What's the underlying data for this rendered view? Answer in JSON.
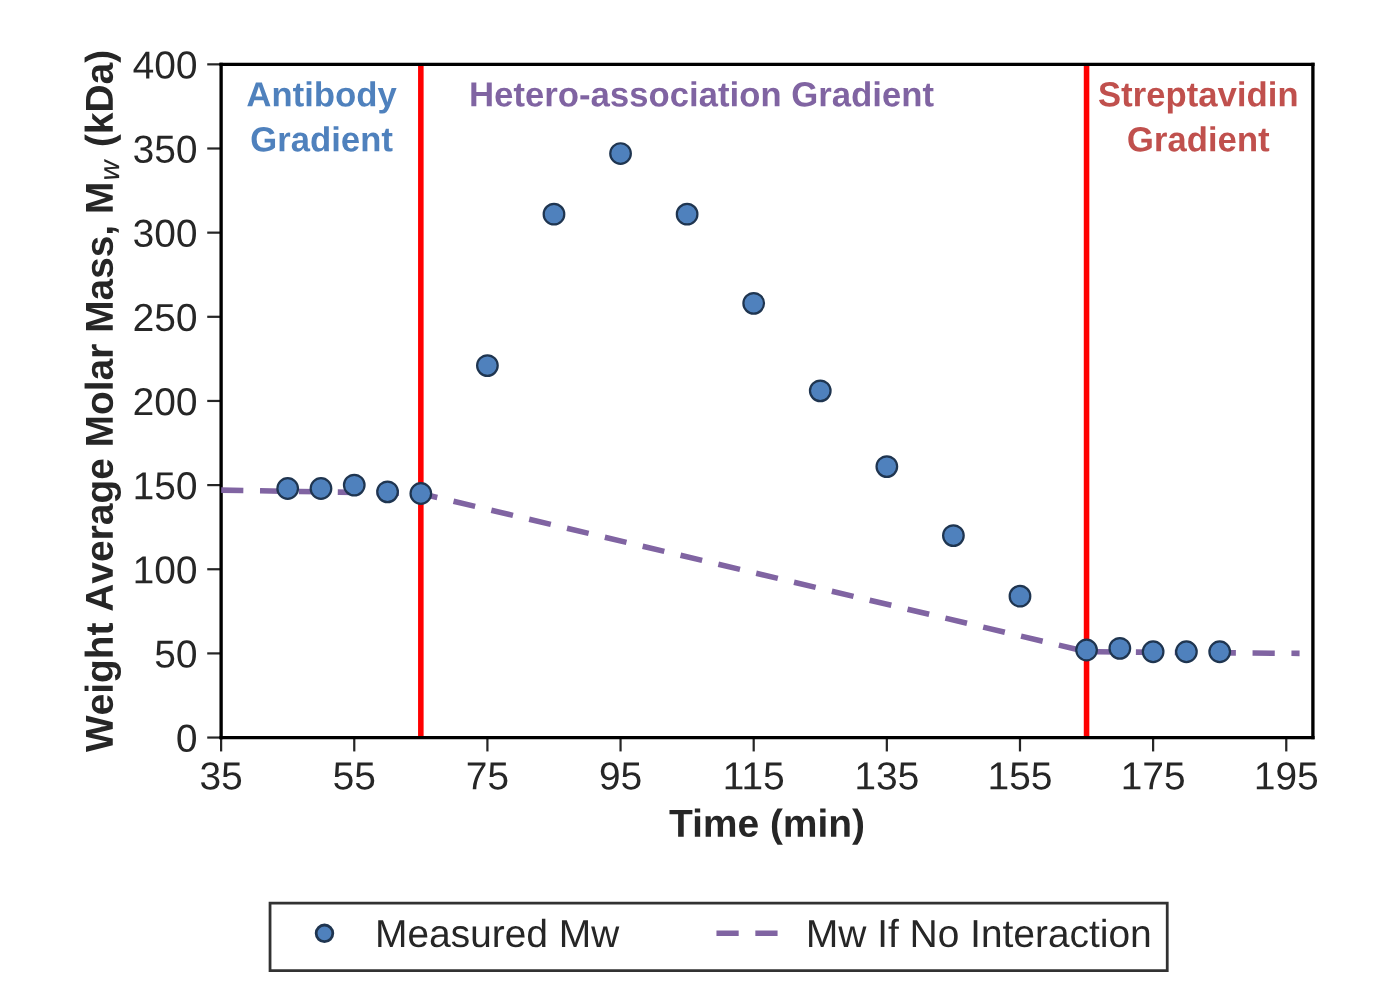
{
  "chart_data": {
    "type": "scatter",
    "xlabel": "Time (min)",
    "ylabel": "Weight Average Molar Mass, M$_{w}$ (kDa)",
    "series": [
      {
        "name": "Measured Mw",
        "marker": "circle",
        "color": "#4f81bd",
        "x": [
          45,
          50,
          55,
          60,
          65,
          75,
          85,
          95,
          105,
          115,
          125,
          135,
          145,
          155,
          165,
          170,
          175,
          180,
          185
        ],
        "values": [
          148,
          148,
          150,
          146,
          145,
          221,
          311,
          347,
          311,
          258,
          206,
          161,
          120,
          84,
          52,
          53,
          51,
          51,
          51
        ]
      },
      {
        "name": "Mw If No Interaction",
        "type": "line",
        "color": "#8064a2",
        "line_style": "dashed",
        "x": [
          35,
          65,
          165,
          197
        ],
        "values": [
          147,
          145,
          51,
          50
        ]
      }
    ],
    "xlim": [
      35,
      199
    ],
    "xticks": [
      35,
      55,
      75,
      95,
      115,
      135,
      155,
      175,
      195
    ],
    "ylim": [
      0,
      400
    ],
    "yticks": [
      0,
      50,
      100,
      150,
      200,
      250,
      300,
      350,
      400
    ],
    "ref_lines": [
      {
        "axis": "x",
        "value": 65,
        "color": "#ff0000"
      },
      {
        "axis": "x",
        "value": 165,
        "color": "#ff0000"
      }
    ],
    "annotations": [
      "Antibody\nGradient",
      "Hetero-association Gradient",
      "Streptavidin\nGradient"
    ],
    "grid": false,
    "legend": "bottom"
  }
}
